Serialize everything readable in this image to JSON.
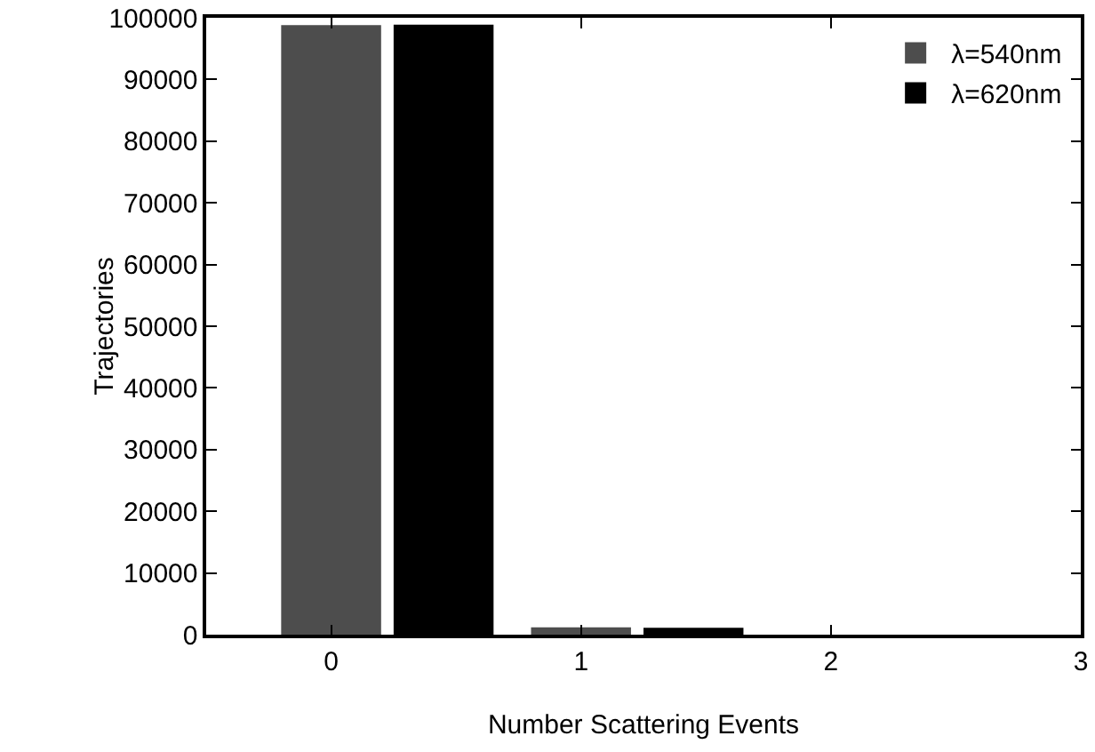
{
  "chart_data": {
    "type": "bar",
    "xlabel": "Number Scattering Events",
    "ylabel": "Trajectories",
    "x": [
      0,
      1,
      2
    ],
    "series": [
      {
        "name": "λ=540nm",
        "color": "#4d4d4d",
        "values": [
          98800,
          1200,
          0
        ]
      },
      {
        "name": "λ=620nm",
        "color": "#000000",
        "values": [
          98900,
          1100,
          0
        ]
      }
    ],
    "xlim": [
      -0.5,
      3
    ],
    "xticks": [
      0,
      1,
      2,
      3
    ],
    "ylim": [
      0,
      100000
    ],
    "yticks": [
      0,
      10000,
      20000,
      30000,
      40000,
      50000,
      60000,
      70000,
      80000,
      90000,
      100000
    ],
    "grid": false,
    "legend": "top right"
  }
}
